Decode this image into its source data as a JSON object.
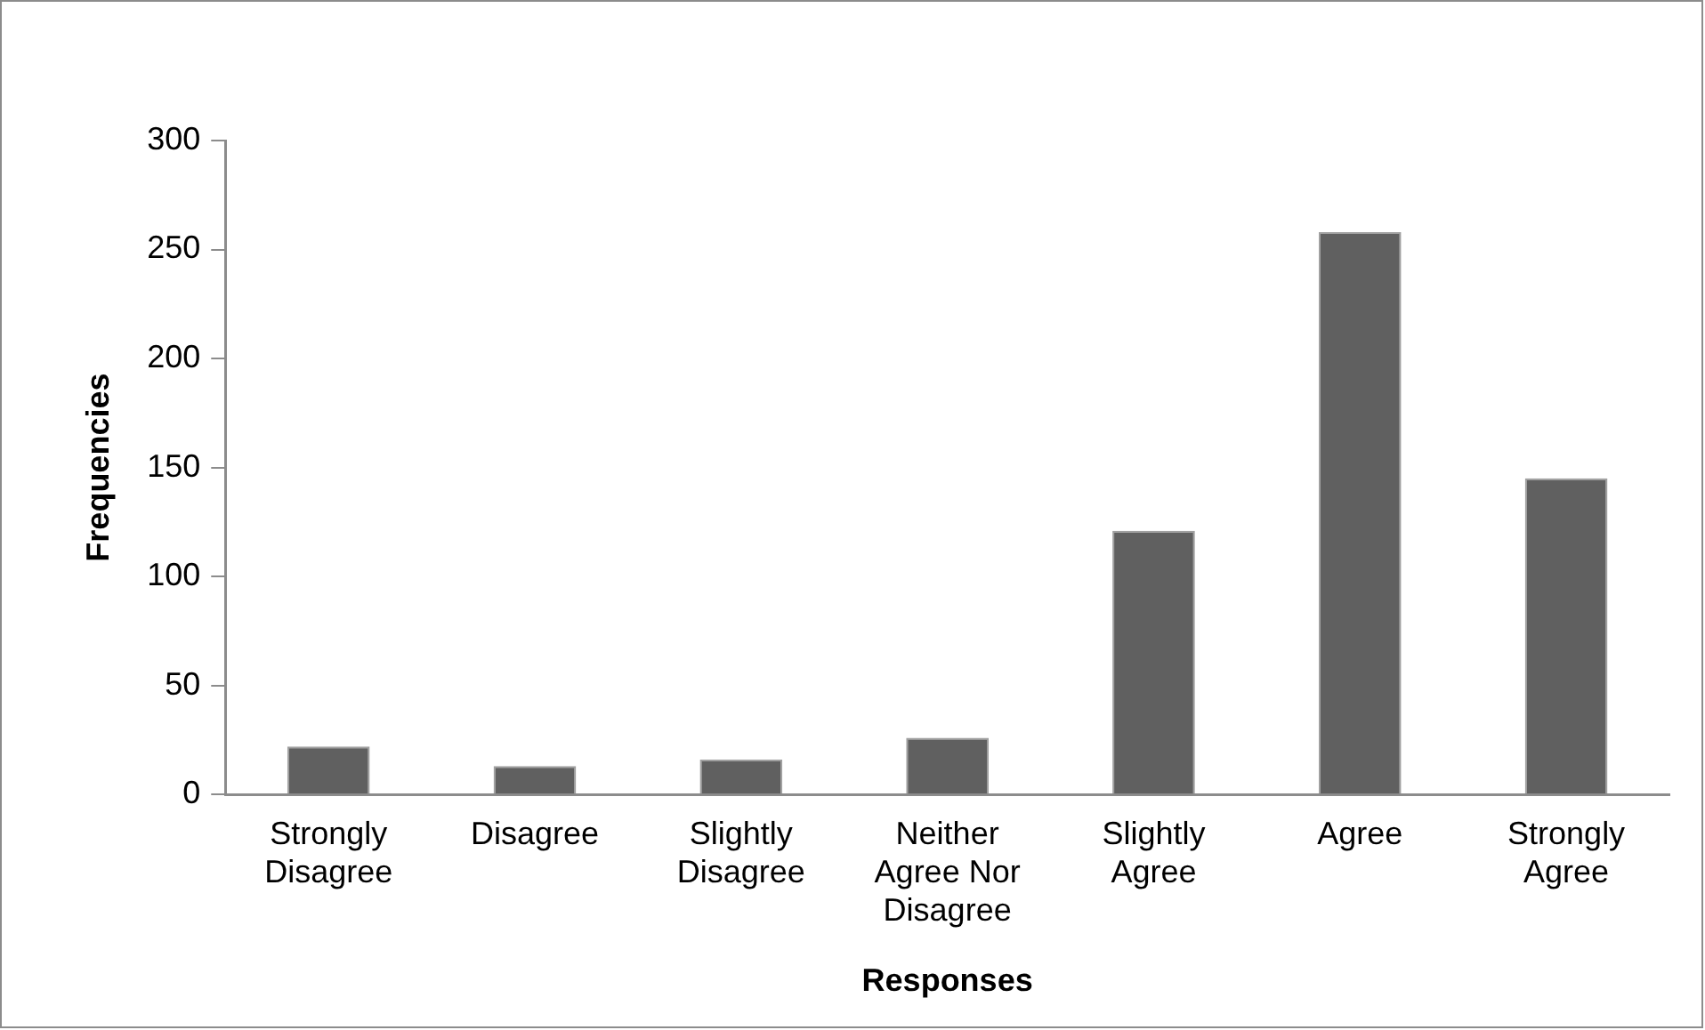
{
  "chart_data": {
    "type": "bar",
    "xlabel": "Responses",
    "ylabel": "Frequencies",
    "categories": [
      "Strongly Disagree",
      "Disagree",
      "Slightly Disagree",
      "Neither Agree Nor Disagree",
      "Slightly Agree",
      "Agree",
      "Strongly Agree"
    ],
    "values": [
      22,
      13,
      16,
      26,
      121,
      258,
      145
    ],
    "color": "#606060",
    "ylim": [
      0,
      300
    ],
    "yticks": [
      0,
      50,
      100,
      150,
      200,
      250,
      300
    ],
    "grid": false,
    "legend": false
  }
}
